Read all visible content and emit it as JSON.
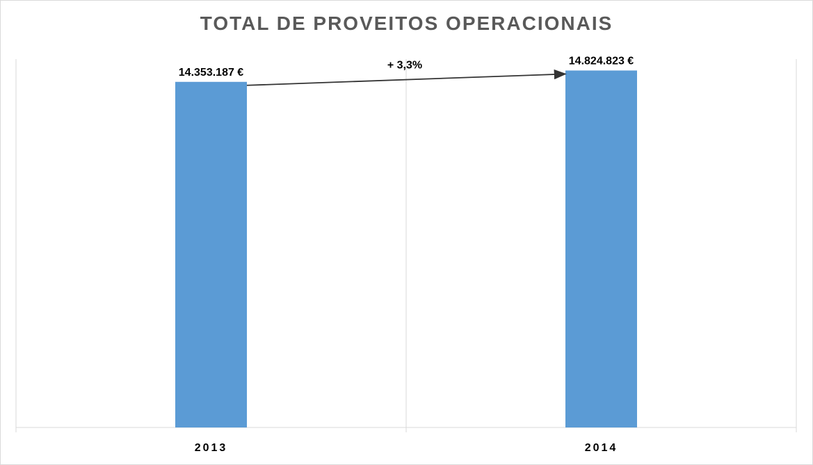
{
  "chart_data": {
    "type": "bar",
    "title": "TOTAL  DE PROVEITOS  OPERACIONAIS",
    "categories": [
      "2013",
      "2014"
    ],
    "values": [
      14353187,
      14824823
    ],
    "data_labels": [
      "14.353.187 €",
      "14.824.823 €"
    ],
    "bar_color": "#5B9BD5",
    "grid": "vertical category separators",
    "annotation": {
      "text": "+ 3,3%",
      "arrow_from": "2013",
      "arrow_to": "2014"
    }
  }
}
